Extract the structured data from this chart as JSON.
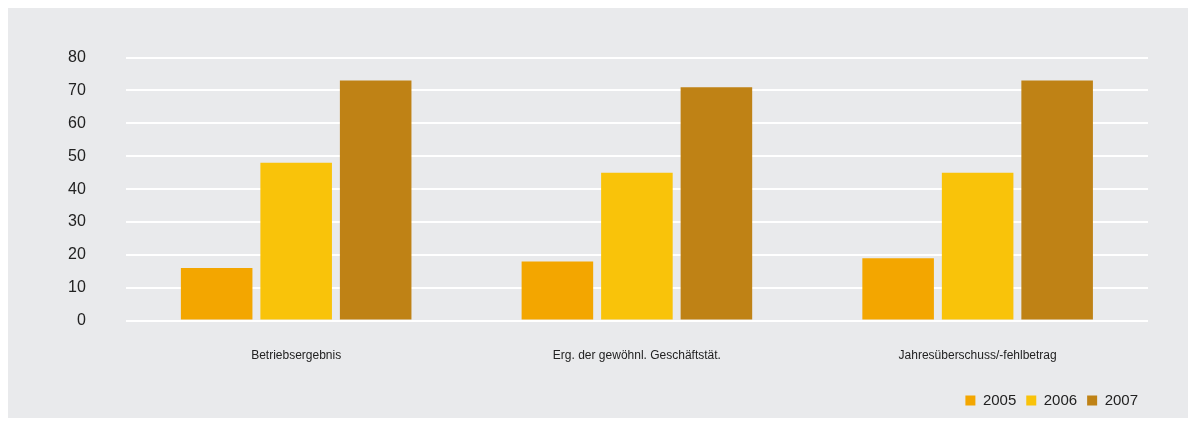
{
  "chart_data": {
    "type": "bar",
    "categories": [
      "Betriebsergebnis",
      "Erg. der gewöhnl. Geschäftstät.",
      "Jahresüberschuss/-fehlbetrag"
    ],
    "series": [
      {
        "name": "2005",
        "color": "#f3a600",
        "values": [
          16,
          18,
          19
        ]
      },
      {
        "name": "2006",
        "color": "#f9c30a",
        "values": [
          48,
          45,
          45
        ]
      },
      {
        "name": "2007",
        "color": "#bf8215",
        "values": [
          73,
          71,
          73
        ]
      }
    ],
    "ylim": [
      0,
      80
    ],
    "yticks": [
      0,
      10,
      20,
      30,
      40,
      50,
      60,
      70,
      80
    ],
    "grid": "y",
    "legend": "bottom right"
  }
}
